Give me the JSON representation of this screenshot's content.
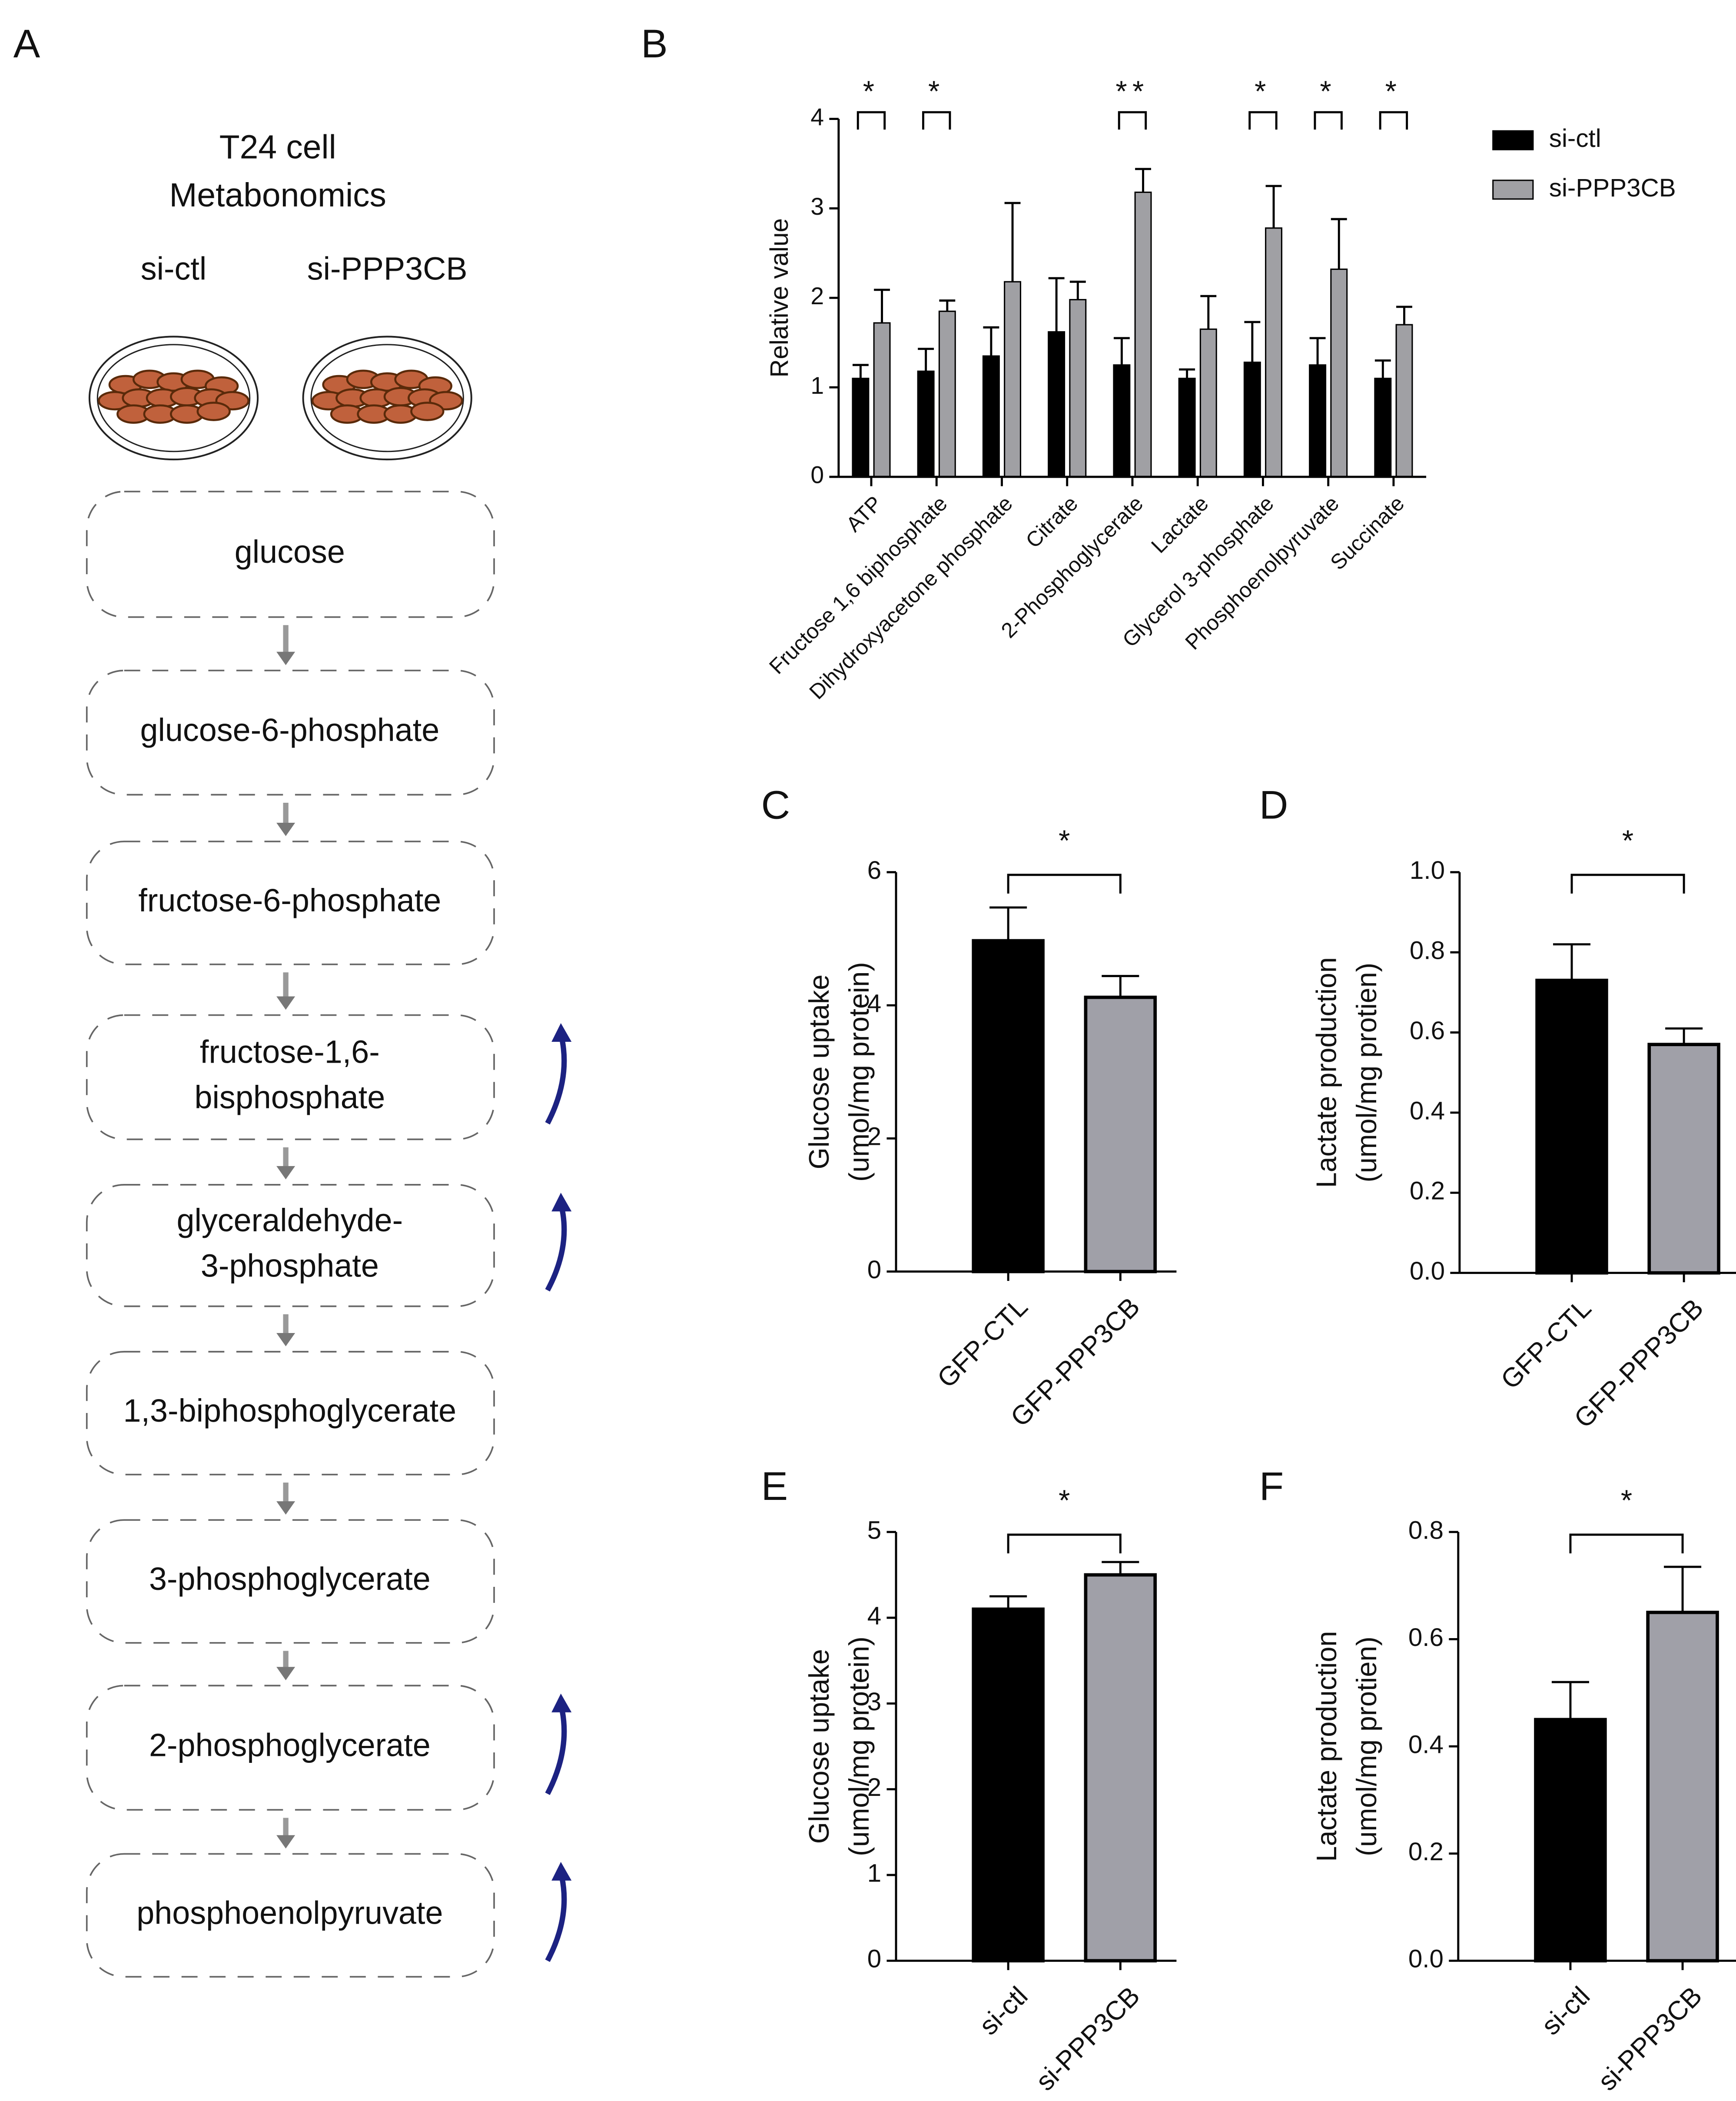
{
  "diagram": {
    "panel": "A",
    "title": [
      "T24 cell",
      "Metabonomics"
    ],
    "groups": [
      "si-ctl",
      "si-PPP3CB"
    ],
    "steps": [
      {
        "lines": [
          "glucose"
        ],
        "increased": false
      },
      {
        "lines": [
          "glucose-6-phosphate"
        ],
        "increased": false
      },
      {
        "lines": [
          "fructose-6-phosphate"
        ],
        "increased": false
      },
      {
        "lines": [
          "fructose-1,6-",
          "bisphosphate"
        ],
        "increased": true
      },
      {
        "lines": [
          "glyceraldehyde-",
          "3-phosphate"
        ],
        "increased": true
      },
      {
        "lines": [
          "1,3-biphosphoglycerate"
        ],
        "increased": false
      },
      {
        "lines": [
          "3-phosphoglycerate"
        ],
        "increased": false
      },
      {
        "lines": [
          "2-phosphoglycerate"
        ],
        "increased": true
      },
      {
        "lines": [
          "phosphoenolpyruvate"
        ],
        "increased": true
      }
    ]
  },
  "chart_data": [
    {
      "type": "bar",
      "panel": "B",
      "ylabel": [
        "Relative value"
      ],
      "categories": [
        "ATP",
        "Fructose 1,6 biphosphate",
        "Dihydroxyacetone phosphate",
        "Citrate",
        "2-Phosphoglycerate",
        "Lactate",
        "Glycerol 3-phosphate",
        "Phosphoenolpyruvate",
        "Succinate"
      ],
      "series": [
        {
          "name": "si-ctl",
          "color": "#000000",
          "values": [
            1.1,
            1.18,
            1.35,
            1.62,
            1.25,
            1.1,
            1.28,
            1.25,
            1.1
          ],
          "errors": [
            0.15,
            0.25,
            0.32,
            0.6,
            0.3,
            0.1,
            0.45,
            0.3,
            0.2
          ]
        },
        {
          "name": "si-PPP3CB",
          "color": "#a0a0a4",
          "values": [
            1.72,
            1.85,
            2.18,
            1.98,
            3.18,
            1.65,
            2.78,
            2.32,
            1.7
          ],
          "errors": [
            0.37,
            0.12,
            0.88,
            0.2,
            0.26,
            0.37,
            0.47,
            0.56,
            0.2
          ]
        }
      ],
      "significance": [
        "*",
        "*",
        null,
        null,
        "**",
        null,
        "*",
        "*",
        "*"
      ],
      "ylim": [
        0,
        4
      ],
      "yticks": [
        0,
        1,
        2,
        3,
        4
      ],
      "legend": "right"
    },
    {
      "type": "bar",
      "panel": "C",
      "ylabel": [
        "Glucose uptake",
        "(umol/mg protein)"
      ],
      "categories": [
        "GFP-CTL",
        "GFP-PPP3CB"
      ],
      "values": [
        4.97,
        4.12
      ],
      "errors": [
        0.5,
        0.32
      ],
      "colors": [
        "#000000",
        "#a0a0a8"
      ],
      "significance": "*",
      "ylim": [
        0,
        6
      ],
      "yticks": [
        0,
        2,
        4,
        6
      ]
    },
    {
      "type": "bar",
      "panel": "D",
      "ylabel": [
        "Lactate production",
        "(umol/mg protien)"
      ],
      "categories": [
        "GFP-CTL",
        "GFP-PPP3CB"
      ],
      "values": [
        0.73,
        0.57
      ],
      "errors": [
        0.09,
        0.04
      ],
      "colors": [
        "#000000",
        "#a0a0a8"
      ],
      "significance": "*",
      "ylim": [
        0,
        1
      ],
      "yticks": [
        {
          "value": 0,
          "label": "0.0"
        },
        0.2,
        0.4,
        0.6,
        0.8,
        {
          "value": 1,
          "label": "1.0"
        }
      ]
    },
    {
      "type": "bar",
      "panel": "E",
      "ylabel": [
        "Glucose uptake",
        "(umol/mg protein)"
      ],
      "categories": [
        "si-ctl",
        "si-PPP3CB"
      ],
      "values": [
        4.1,
        4.5
      ],
      "errors": [
        0.15,
        0.15
      ],
      "colors": [
        "#000000",
        "#a0a0a8"
      ],
      "significance": "*",
      "ylim": [
        0,
        5
      ],
      "yticks": [
        0,
        1,
        2,
        3,
        4,
        5
      ]
    },
    {
      "type": "bar",
      "panel": "F",
      "ylabel": [
        "Lactate production",
        "(umol/mg protien)"
      ],
      "categories": [
        "si-ctl",
        "si-PPP3CB"
      ],
      "values": [
        0.45,
        0.65
      ],
      "errors": [
        0.07,
        0.085
      ],
      "colors": [
        "#000000",
        "#a0a0a8"
      ],
      "significance": "*",
      "ylim": [
        0,
        0.8
      ],
      "yticks": [
        {
          "value": 0,
          "label": "0.0"
        },
        0.2,
        0.4,
        0.6,
        0.8
      ]
    }
  ]
}
